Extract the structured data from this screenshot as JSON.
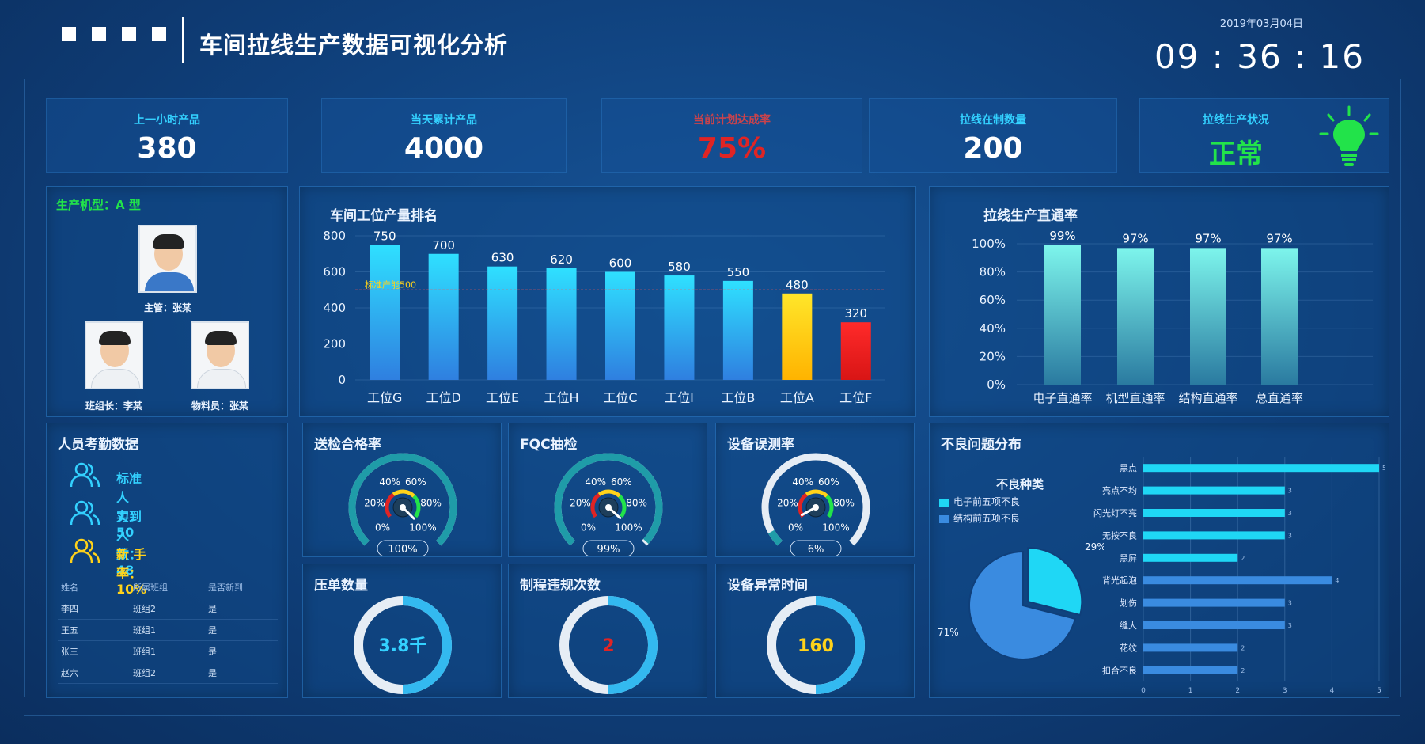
{
  "header": {
    "title": "车间拉线生产数据可视化分析",
    "date": "2019年03月04日",
    "clock": "09 : 36 : 16"
  },
  "kpis": [
    {
      "label": "上一小时产品",
      "value": "380"
    },
    {
      "label": "当天累计产品",
      "value": "4000"
    },
    {
      "label": "当前计划达成率",
      "value": "75%"
    },
    {
      "label": "拉线在制数量",
      "value": "200"
    },
    {
      "label": "拉线生产状况",
      "value": "正常"
    }
  ],
  "colors": {
    "accent": "#33d1ff",
    "danger": "#e02424",
    "ok": "#22e34a",
    "warn": "#ffd21a"
  },
  "team": {
    "model": "生产机型：A 型",
    "members": [
      {
        "caption": "主管：张某"
      },
      {
        "caption": "班组长：李某"
      },
      {
        "caption": "物料员：张某"
      }
    ]
  },
  "attendance": {
    "title": "人员考勤数据",
    "items": [
      {
        "label": "标准人力：50"
      },
      {
        "label": "实到人数：48"
      },
      {
        "label": "新 手 率：10%"
      }
    ],
    "table": {
      "headers": [
        "姓名",
        "所属班组",
        "是否新到"
      ],
      "rows": [
        [
          "李四",
          "班组2",
          "是"
        ],
        [
          "王五",
          "班组1",
          "是"
        ],
        [
          "张三",
          "班组1",
          "是"
        ],
        [
          "赵六",
          "班组2",
          "是"
        ]
      ]
    }
  },
  "gauges": [
    {
      "title": "送检合格率",
      "value": 100,
      "label": "100%",
      "ticks": [
        "0%",
        "20%",
        "40%",
        "60%",
        "80%",
        "100%"
      ]
    },
    {
      "title": "FQC抽检",
      "value": 99,
      "label": "99%",
      "ticks": [
        "0%",
        "20%",
        "40%",
        "60%",
        "80%",
        "100%"
      ]
    },
    {
      "title": "设备误测率",
      "value": 6,
      "label": "6%",
      "ticks": [
        "0%",
        "20%",
        "40%",
        "60%",
        "80%",
        "100%"
      ]
    }
  ],
  "rings": [
    {
      "title": "压单数量",
      "value": "3.8千",
      "fraction": 0.5,
      "color": "#33d1ff"
    },
    {
      "title": "制程违规次数",
      "value": "2",
      "fraction": 0.5,
      "color": "#e02424"
    },
    {
      "title": "设备异常时间",
      "value": "160",
      "fraction": 0.5,
      "color": "#ffd21a"
    }
  ],
  "defects": {
    "title": "不良问题分布",
    "legend_title": "不良种类"
  },
  "chart_data": [
    {
      "type": "bar",
      "title": "车间工位产量排名",
      "categories": [
        "工位G",
        "工位D",
        "工位E",
        "工位H",
        "工位C",
        "工位I",
        "工位B",
        "工位A",
        "工位F"
      ],
      "values": [
        750,
        700,
        630,
        620,
        600,
        580,
        550,
        480,
        320
      ],
      "ylim": [
        0,
        800
      ],
      "yticks": [
        "0",
        "200",
        "400",
        "600",
        "800"
      ],
      "reference": {
        "label": "标准产能500",
        "value": 500
      },
      "bar_colors": [
        "#2fd3ff",
        "#2fd3ff",
        "#2fd3ff",
        "#2fd3ff",
        "#2fd3ff",
        "#2fd3ff",
        "#2fd3ff",
        "#ffd21a",
        "#e02424"
      ]
    },
    {
      "type": "bar",
      "title": "拉线生产直通率",
      "categories": [
        "电子直通率",
        "机型直通率",
        "结构直通率",
        "总直通率"
      ],
      "values": [
        99,
        97,
        97,
        97
      ],
      "value_labels": [
        "99%",
        "97%",
        "97%",
        "97%"
      ],
      "ylim": [
        0,
        100
      ],
      "yticks": [
        "0%",
        "20%",
        "40%",
        "60%",
        "80%",
        "100%"
      ]
    },
    {
      "type": "pie",
      "series": [
        {
          "name": "电子前五项不良",
          "value": 29,
          "label": "29%",
          "color": "#1fd7f5"
        },
        {
          "name": "结构前五项不良",
          "value": 71,
          "label": "71%",
          "color": "#3a8be0"
        }
      ]
    },
    {
      "type": "bar",
      "orientation": "horizontal",
      "categories": [
        "黑点",
        "亮点不均",
        "闪光灯不亮",
        "无按不良",
        "黑屏",
        "背光起泡",
        "划伤",
        "缝大",
        "花纹",
        "扣合不良"
      ],
      "values": [
        5,
        3,
        3,
        3,
        2,
        4,
        3,
        3,
        2,
        2
      ],
      "xlim": [
        0,
        5
      ],
      "xticks": [
        "0",
        "1",
        "2",
        "3",
        "4",
        "5"
      ],
      "bar_colors": [
        "#1fd7f5",
        "#1fd7f5",
        "#1fd7f5",
        "#1fd7f5",
        "#1fd7f5",
        "#3a8be0",
        "#3a8be0",
        "#3a8be0",
        "#3a8be0",
        "#3a8be0"
      ]
    }
  ]
}
